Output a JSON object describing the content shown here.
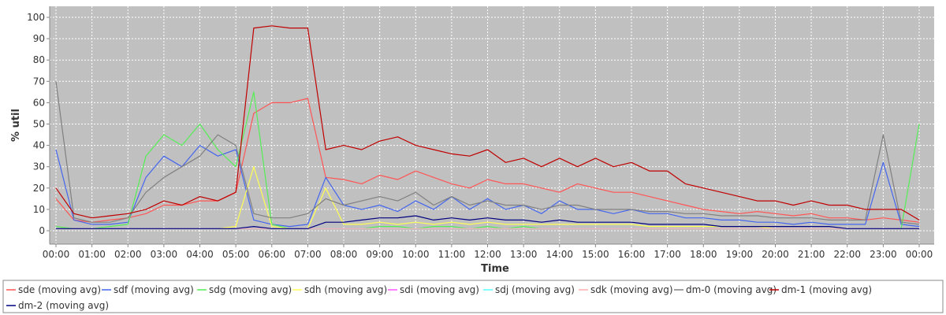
{
  "chart_data": {
    "type": "line",
    "title": "",
    "xlabel": "Time",
    "ylabel": "% util",
    "ylim": [
      0,
      100
    ],
    "y_ticks": [
      0,
      10,
      20,
      30,
      40,
      50,
      60,
      70,
      80,
      90,
      100
    ],
    "xlim": [
      "00:00",
      "24:00"
    ],
    "x_ticks": [
      "00:00",
      "01:00",
      "02:00",
      "03:00",
      "04:00",
      "05:00",
      "06:00",
      "07:00",
      "08:00",
      "09:00",
      "10:00",
      "11:00",
      "12:00",
      "13:00",
      "14:00",
      "15:00",
      "16:00",
      "17:00",
      "18:00",
      "19:00",
      "20:00",
      "21:00",
      "22:00",
      "23:00",
      "00:00"
    ],
    "grid": true,
    "legend_position": "bottom",
    "x": [
      "00:00",
      "00:30",
      "01:00",
      "01:30",
      "02:00",
      "02:30",
      "03:00",
      "03:30",
      "04:00",
      "04:30",
      "05:00",
      "05:30",
      "06:00",
      "06:30",
      "07:00",
      "07:30",
      "08:00",
      "08:30",
      "09:00",
      "09:30",
      "10:00",
      "10:30",
      "11:00",
      "11:30",
      "12:00",
      "12:30",
      "13:00",
      "13:30",
      "14:00",
      "14:30",
      "15:00",
      "15:30",
      "16:00",
      "16:30",
      "17:00",
      "17:30",
      "18:00",
      "18:30",
      "19:00",
      "19:30",
      "20:00",
      "20:30",
      "21:00",
      "21:30",
      "22:00",
      "22:30",
      "23:00",
      "23:30",
      "24:00"
    ],
    "series": [
      {
        "name": "sde (moving avg)",
        "color": "#ff5555",
        "values": [
          15,
          5,
          4,
          5,
          6,
          8,
          12,
          12,
          14,
          14,
          18,
          55,
          60,
          60,
          62,
          25,
          24,
          22,
          26,
          24,
          28,
          25,
          22,
          20,
          24,
          22,
          22,
          20,
          18,
          22,
          20,
          18,
          18,
          16,
          14,
          12,
          10,
          9,
          8,
          9,
          8,
          7,
          8,
          6,
          6,
          5,
          6,
          5,
          4
        ]
      },
      {
        "name": "sdf (moving avg)",
        "color": "#4466ee",
        "values": [
          38,
          5,
          3,
          3,
          4,
          25,
          35,
          30,
          40,
          35,
          38,
          5,
          3,
          2,
          3,
          25,
          12,
          10,
          12,
          9,
          14,
          10,
          16,
          10,
          15,
          10,
          12,
          8,
          14,
          10,
          10,
          8,
          10,
          8,
          8,
          6,
          6,
          5,
          5,
          4,
          4,
          3,
          4,
          3,
          3,
          3,
          32,
          3,
          2
        ]
      },
      {
        "name": "sdg (moving avg)",
        "color": "#55ee55",
        "values": [
          2,
          1,
          1,
          2,
          3,
          35,
          45,
          40,
          50,
          38,
          30,
          65,
          3,
          1,
          1,
          1,
          1,
          1,
          2,
          2,
          1,
          2,
          2,
          1,
          2,
          1,
          2,
          1,
          1,
          1,
          1,
          1,
          1,
          1,
          1,
          1,
          1,
          1,
          1,
          1,
          1,
          1,
          1,
          1,
          1,
          1,
          1,
          1,
          50
        ]
      },
      {
        "name": "sdh (moving avg)",
        "color": "#ffff55",
        "values": [
          1,
          1,
          1,
          1,
          1,
          1,
          1,
          1,
          1,
          1,
          2,
          30,
          2,
          1,
          1,
          20,
          3,
          3,
          4,
          3,
          4,
          3,
          4,
          3,
          4,
          3,
          3,
          3,
          3,
          3,
          3,
          3,
          3,
          2,
          2,
          2,
          2,
          2,
          2,
          2,
          1,
          1,
          1,
          1,
          1,
          1,
          1,
          1,
          1
        ]
      },
      {
        "name": "sdi (moving avg)",
        "color": "#ff55ff",
        "values": [
          1,
          1,
          1,
          1,
          1,
          1,
          1,
          1,
          1,
          1,
          1,
          1,
          1,
          1,
          1,
          1,
          1,
          1,
          1,
          1,
          1,
          1,
          1,
          1,
          1,
          1,
          1,
          1,
          1,
          1,
          1,
          1,
          1,
          1,
          1,
          1,
          1,
          1,
          1,
          1,
          1,
          1,
          1,
          1,
          1,
          1,
          1,
          1,
          1
        ]
      },
      {
        "name": "sdj (moving avg)",
        "color": "#55ffff",
        "values": [
          1,
          1,
          1,
          1,
          1,
          1,
          1,
          1,
          1,
          1,
          1,
          1,
          1,
          1,
          1,
          1,
          1,
          1,
          1,
          1,
          1,
          1,
          1,
          1,
          1,
          1,
          1,
          1,
          1,
          1,
          1,
          1,
          1,
          1,
          1,
          1,
          1,
          1,
          1,
          1,
          1,
          1,
          1,
          1,
          1,
          1,
          1,
          1,
          1
        ]
      },
      {
        "name": "sdk (moving avg)",
        "color": "#ffafaf",
        "values": [
          1,
          1,
          1,
          1,
          1,
          1,
          1,
          1,
          1,
          1,
          1,
          1,
          1,
          1,
          1,
          1,
          1,
          1,
          1,
          1,
          1,
          1,
          1,
          1,
          1,
          1,
          1,
          1,
          1,
          1,
          1,
          1,
          1,
          1,
          1,
          1,
          1,
          1,
          1,
          1,
          1,
          1,
          1,
          1,
          1,
          1,
          1,
          1,
          1
        ]
      },
      {
        "name": "dm-0 (moving avg)",
        "color": "#808080",
        "values": [
          70,
          6,
          4,
          4,
          6,
          18,
          25,
          30,
          35,
          45,
          40,
          8,
          6,
          6,
          8,
          15,
          12,
          14,
          16,
          14,
          18,
          12,
          16,
          12,
          14,
          12,
          12,
          10,
          12,
          12,
          10,
          10,
          10,
          9,
          9,
          8,
          8,
          7,
          7,
          7,
          6,
          6,
          6,
          5,
          5,
          5,
          45,
          4,
          3
        ]
      },
      {
        "name": "dm-1 (moving avg)",
        "color": "#c00000",
        "values": [
          20,
          8,
          6,
          7,
          8,
          10,
          14,
          12,
          16,
          14,
          18,
          95,
          96,
          95,
          95,
          38,
          40,
          38,
          42,
          44,
          40,
          38,
          36,
          35,
          38,
          32,
          34,
          30,
          34,
          30,
          34,
          30,
          32,
          28,
          28,
          22,
          20,
          18,
          16,
          14,
          14,
          12,
          14,
          12,
          12,
          10,
          10,
          10,
          5
        ]
      },
      {
        "name": "dm-2 (moving avg)",
        "color": "#000080",
        "values": [
          1,
          1,
          1,
          1,
          1,
          1,
          1,
          1,
          1,
          1,
          1,
          2,
          1,
          1,
          1,
          4,
          4,
          5,
          6,
          6,
          7,
          5,
          6,
          5,
          6,
          5,
          5,
          4,
          5,
          4,
          4,
          4,
          4,
          3,
          3,
          3,
          3,
          2,
          2,
          2,
          2,
          2,
          2,
          2,
          1,
          1,
          1,
          1,
          1
        ]
      }
    ]
  }
}
